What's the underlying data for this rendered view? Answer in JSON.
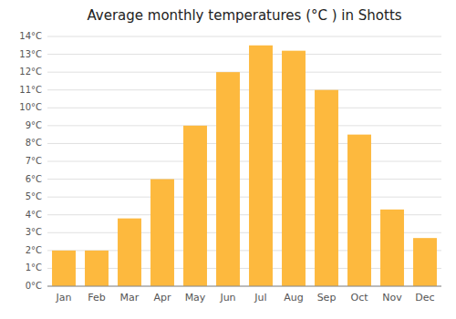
{
  "chart_data": {
    "type": "bar",
    "title": "Average monthly temperatures (°C ) in Shotts",
    "categories": [
      "Jan",
      "Feb",
      "Mar",
      "Apr",
      "May",
      "Jun",
      "Jul",
      "Aug",
      "Sep",
      "Oct",
      "Nov",
      "Dec"
    ],
    "values": [
      2.0,
      2.0,
      3.8,
      6.0,
      9.0,
      12.0,
      13.5,
      13.2,
      11.0,
      8.5,
      4.3,
      2.7
    ],
    "color": "#FDB93E",
    "ylim": [
      0,
      14
    ],
    "yticks": [
      {
        "value": 0,
        "label": "0°C"
      },
      {
        "value": 1,
        "label": "1°C"
      },
      {
        "value": 2,
        "label": "2°C"
      },
      {
        "value": 3,
        "label": "3°C"
      },
      {
        "value": 4,
        "label": "4°C"
      },
      {
        "value": 5,
        "label": "5°C"
      },
      {
        "value": 6,
        "label": "6°C"
      },
      {
        "value": 7,
        "label": "7°C"
      },
      {
        "value": 8,
        "label": "8°C"
      },
      {
        "value": 9,
        "label": "9°C"
      },
      {
        "value": 10,
        "label": "10°C"
      },
      {
        "value": 11,
        "label": "11°C"
      },
      {
        "value": 12,
        "label": "12°C"
      },
      {
        "value": 13,
        "label": "13°C"
      },
      {
        "value": 14,
        "label": "14°C"
      }
    ],
    "grid": true
  }
}
